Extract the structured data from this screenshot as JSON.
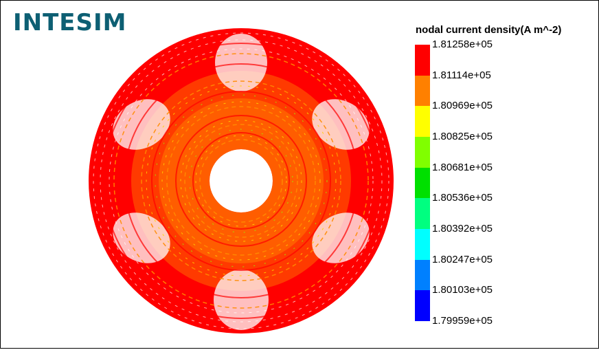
{
  "app": {
    "logo_text": "INTESIM",
    "logo_color": "#0d5f73"
  },
  "plot": {
    "description_icon": "annular-mesh-contour"
  },
  "legend": {
    "title": "nodal current density(A m^-2)",
    "ticks": [
      "1.81258e+05",
      "1.81114e+05",
      "1.80969e+05",
      "1.80825e+05",
      "1.80681e+05",
      "1.80536e+05",
      "1.80392e+05",
      "1.80247e+05",
      "1.80103e+05",
      "1.79959e+05"
    ],
    "colors": [
      "#ff0000",
      "#ff8000",
      "#ffff00",
      "#80ff00",
      "#00e000",
      "#00ff80",
      "#00ffff",
      "#0080ff",
      "#0000ff"
    ]
  }
}
